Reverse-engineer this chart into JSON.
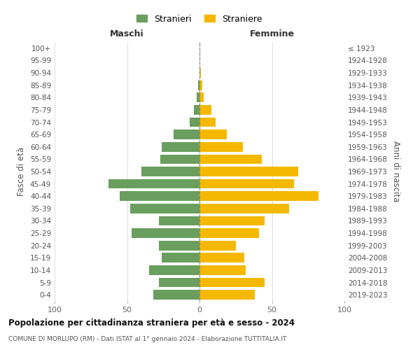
{
  "age_groups": [
    "0-4",
    "5-9",
    "10-14",
    "15-19",
    "20-24",
    "25-29",
    "30-34",
    "35-39",
    "40-44",
    "45-49",
    "50-54",
    "55-59",
    "60-64",
    "65-69",
    "70-74",
    "75-79",
    "80-84",
    "85-89",
    "90-94",
    "95-99",
    "100+"
  ],
  "birth_years": [
    "2019-2023",
    "2014-2018",
    "2009-2013",
    "2004-2008",
    "1999-2003",
    "1994-1998",
    "1989-1993",
    "1984-1988",
    "1979-1983",
    "1974-1978",
    "1969-1973",
    "1964-1968",
    "1959-1963",
    "1954-1958",
    "1949-1953",
    "1944-1948",
    "1939-1943",
    "1934-1938",
    "1929-1933",
    "1924-1928",
    "≤ 1923"
  ],
  "maschi": [
    32,
    28,
    35,
    26,
    28,
    47,
    28,
    48,
    55,
    63,
    40,
    27,
    26,
    18,
    7,
    4,
    2,
    1,
    0,
    0,
    0
  ],
  "femmine": [
    38,
    45,
    32,
    31,
    25,
    41,
    45,
    62,
    82,
    65,
    68,
    43,
    30,
    19,
    11,
    8,
    3,
    2,
    1,
    0,
    0
  ],
  "color_maschi": "#6a9e5e",
  "color_femmine": "#f5b800",
  "title": "Popolazione per cittadinanza straniera per età e sesso - 2024",
  "subtitle": "COMUNE DI MORLUPO (RM) - Dati ISTAT al 1° gennaio 2024 - Elaborazione TUTTITALIA.IT",
  "ylabel_left": "Fasce di età",
  "ylabel_right": "Anni di nascita",
  "label_maschi": "Maschi",
  "label_femmine": "Femmine",
  "legend_maschi": "Stranieri",
  "legend_femmine": "Straniere",
  "xlim": 100,
  "bg_color": "#ffffff",
  "grid_color": "#d8d8d8"
}
